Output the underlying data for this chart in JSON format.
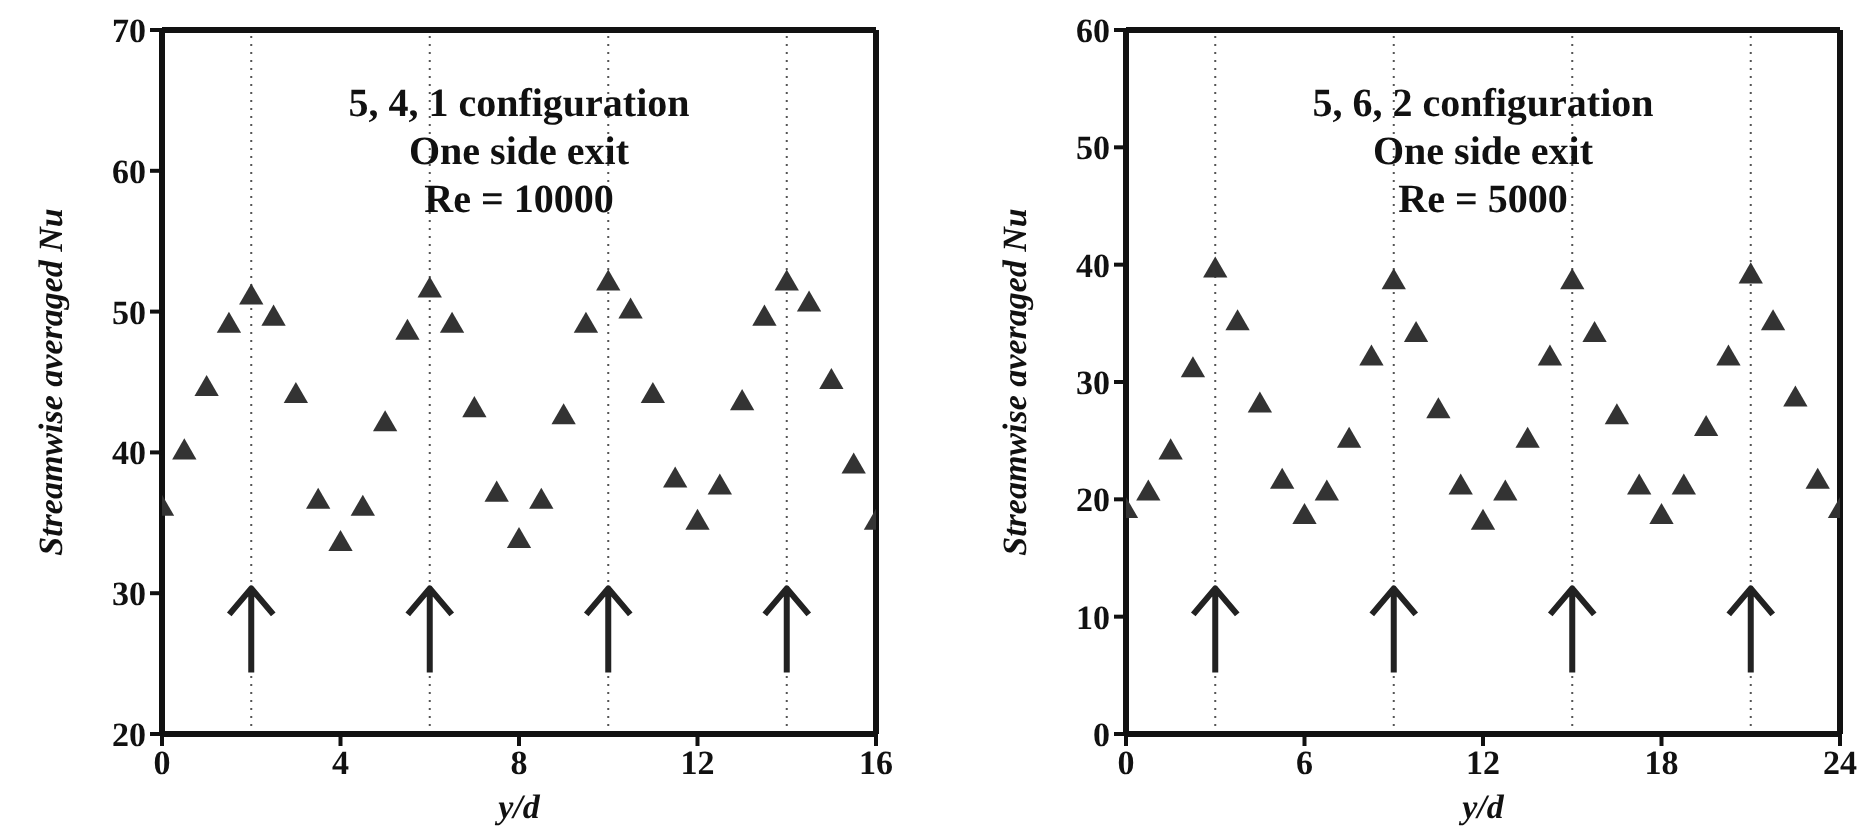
{
  "chart_data": [
    {
      "type": "scatter",
      "xlabel": "y/d",
      "ylabel": "Streamwise averaged Nu",
      "annotations": [
        "5, 4, 1 configuration",
        "One side exit",
        "Re = 10000"
      ],
      "x": [
        0,
        0.5,
        1,
        1.5,
        2,
        2.5,
        3,
        3.5,
        4,
        4.5,
        5,
        5.5,
        6,
        6.5,
        7,
        7.5,
        8,
        8.5,
        9,
        9.5,
        10,
        10.5,
        11,
        11.5,
        12,
        12.5,
        13,
        13.5,
        14,
        14.5,
        15,
        15.5,
        16
      ],
      "series": [
        {
          "color": "#333333",
          "values": [
            36,
            40,
            44.5,
            49,
            51,
            49.5,
            44,
            36.5,
            33.5,
            36,
            42,
            48.5,
            51.5,
            49,
            43,
            37,
            33.7,
            36.5,
            42.5,
            49,
            52,
            50,
            44,
            38,
            35,
            37.5,
            43.5,
            49.5,
            52,
            50.5,
            45,
            39,
            35
          ]
        }
      ],
      "xlim": [
        0,
        16
      ],
      "xticks": [
        0,
        4,
        8,
        12,
        16
      ],
      "ylim": [
        20,
        70
      ],
      "yticks": [
        20,
        30,
        40,
        50,
        60,
        70
      ],
      "marker": "triangle",
      "ref_lines": [
        {
          "axis": "x",
          "value": 2,
          "line_style": "dotted"
        },
        {
          "axis": "x",
          "value": 6,
          "line_style": "dotted"
        },
        {
          "axis": "x",
          "value": 10,
          "line_style": "dotted"
        },
        {
          "axis": "x",
          "value": 14,
          "line_style": "dotted"
        }
      ]
    },
    {
      "type": "scatter",
      "xlabel": "y/d",
      "ylabel": "Streamwise averaged Nu",
      "annotations": [
        "5, 6, 2 configuration",
        "One side exit",
        "Re = 5000"
      ],
      "x": [
        0,
        0.75,
        1.5,
        2.25,
        3,
        3.75,
        4.5,
        5.25,
        6,
        6.75,
        7.5,
        8.25,
        9,
        9.75,
        10.5,
        11.25,
        12,
        12.75,
        13.5,
        14.25,
        15,
        15.75,
        16.5,
        17.25,
        18,
        18.75,
        19.5,
        20.25,
        21,
        21.75,
        22.5,
        23.25,
        24
      ],
      "series": [
        {
          "color": "#333333",
          "values": [
            19,
            20.5,
            24,
            31,
            39.5,
            35,
            28,
            21.5,
            18.5,
            20.5,
            25,
            32,
            38.5,
            34,
            27.5,
            21,
            18,
            20.5,
            25,
            32,
            38.5,
            34,
            27,
            21,
            18.5,
            21,
            26,
            32,
            39,
            35,
            28.5,
            21.5,
            19
          ]
        }
      ],
      "xlim": [
        0,
        24
      ],
      "xticks": [
        0,
        6,
        12,
        18,
        24
      ],
      "ylim": [
        0,
        60
      ],
      "yticks": [
        0,
        10,
        20,
        30,
        40,
        50,
        60
      ],
      "marker": "triangle",
      "ref_lines": [
        {
          "axis": "x",
          "value": 3,
          "line_style": "dotted"
        },
        {
          "axis": "x",
          "value": 9,
          "line_style": "dotted"
        },
        {
          "axis": "x",
          "value": 15,
          "line_style": "dotted"
        },
        {
          "axis": "x",
          "value": 21,
          "line_style": "dotted"
        }
      ]
    }
  ]
}
